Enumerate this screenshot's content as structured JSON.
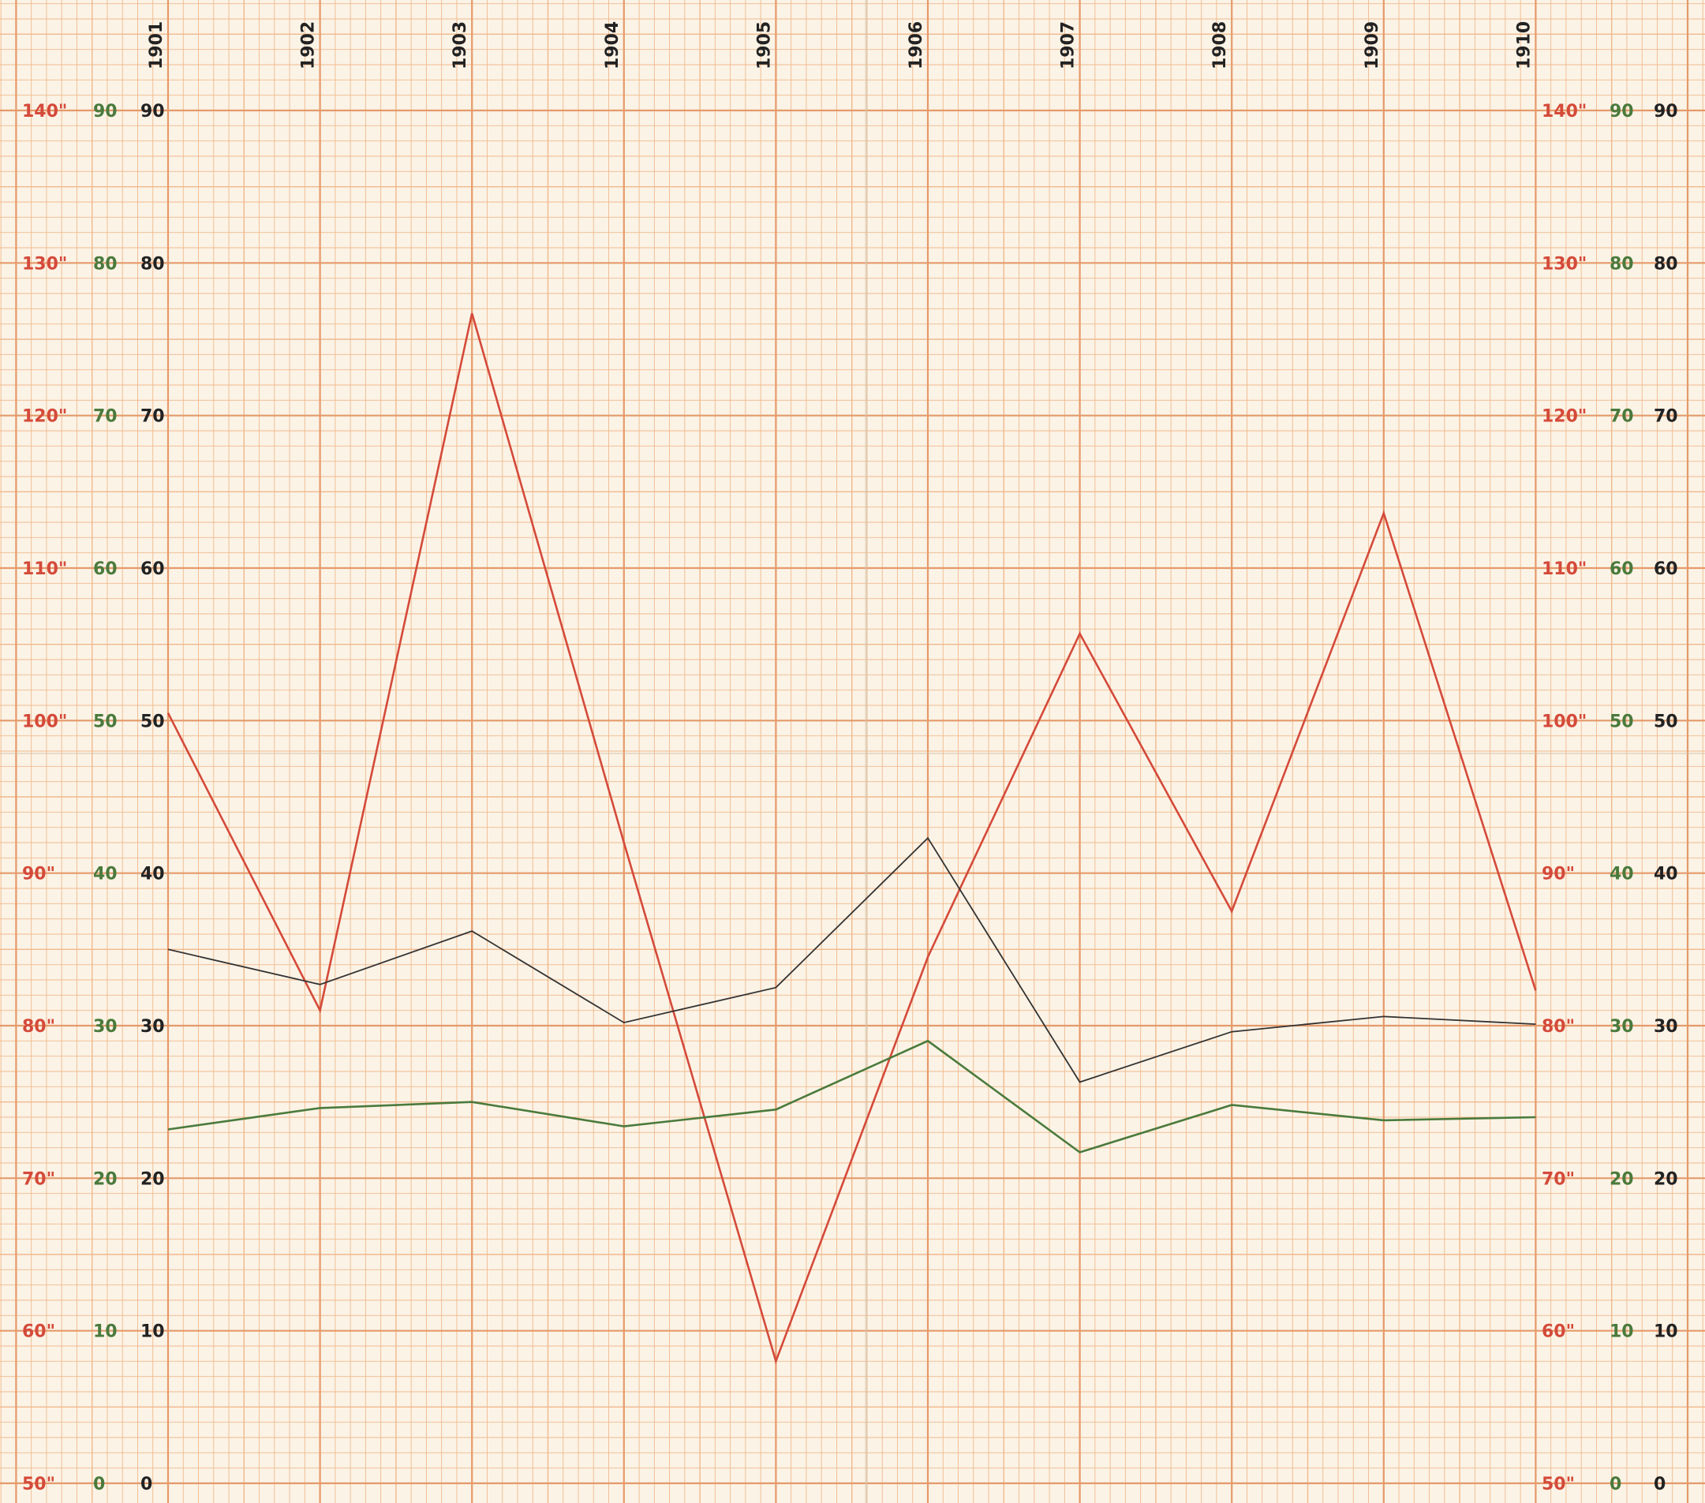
{
  "chart_data": {
    "type": "line",
    "categories": [
      "1901",
      "1902",
      "1903",
      "1904",
      "1905",
      "1906",
      "1907",
      "1908",
      "1909",
      "1910"
    ],
    "x_axis": {
      "position": "top",
      "labels_rotated": true
    },
    "y_axes": [
      {
        "id": "red",
        "color": "#d44a3a",
        "side": "both",
        "range": [
          50,
          140
        ],
        "ticks": [
          50,
          60,
          70,
          80,
          90,
          100,
          110,
          120,
          130,
          140
        ],
        "tick_labels": [
          "50\"",
          "60\"",
          "70\"",
          "80\"",
          "90\"",
          "100\"",
          "110\"",
          "120\"",
          "130\"",
          "140\""
        ]
      },
      {
        "id": "green",
        "color": "#4a7a3c",
        "side": "both",
        "range": [
          0,
          90
        ],
        "ticks": [
          0,
          10,
          20,
          30,
          40,
          50,
          60,
          70,
          80,
          90
        ],
        "tick_labels": [
          "0",
          "10",
          "20",
          "30",
          "40",
          "50",
          "60",
          "70",
          "80",
          "90"
        ]
      },
      {
        "id": "black",
        "color": "#222222",
        "side": "both",
        "range": [
          0,
          90
        ],
        "ticks": [
          0,
          10,
          20,
          30,
          40,
          50,
          60,
          70,
          80,
          90
        ],
        "tick_labels": [
          "0",
          "10",
          "20",
          "30",
          "40",
          "50",
          "60",
          "70",
          "80",
          "90"
        ]
      }
    ],
    "series": [
      {
        "axis": "red",
        "color": "#d44a3a",
        "values": [
          100.5,
          81.0,
          126.7,
          92.0,
          58.0,
          84.5,
          105.7,
          87.5,
          113.6,
          82.3
        ]
      },
      {
        "axis": "black",
        "color": "#333333",
        "values": [
          35.0,
          32.7,
          36.2,
          30.2,
          32.5,
          42.3,
          26.3,
          29.6,
          30.6,
          30.1
        ]
      },
      {
        "axis": "green",
        "color": "#4a7a3c",
        "values": [
          23.2,
          24.6,
          25.0,
          23.4,
          24.5,
          29.0,
          21.7,
          24.8,
          23.8,
          24.0
        ]
      }
    ],
    "grid": true
  }
}
